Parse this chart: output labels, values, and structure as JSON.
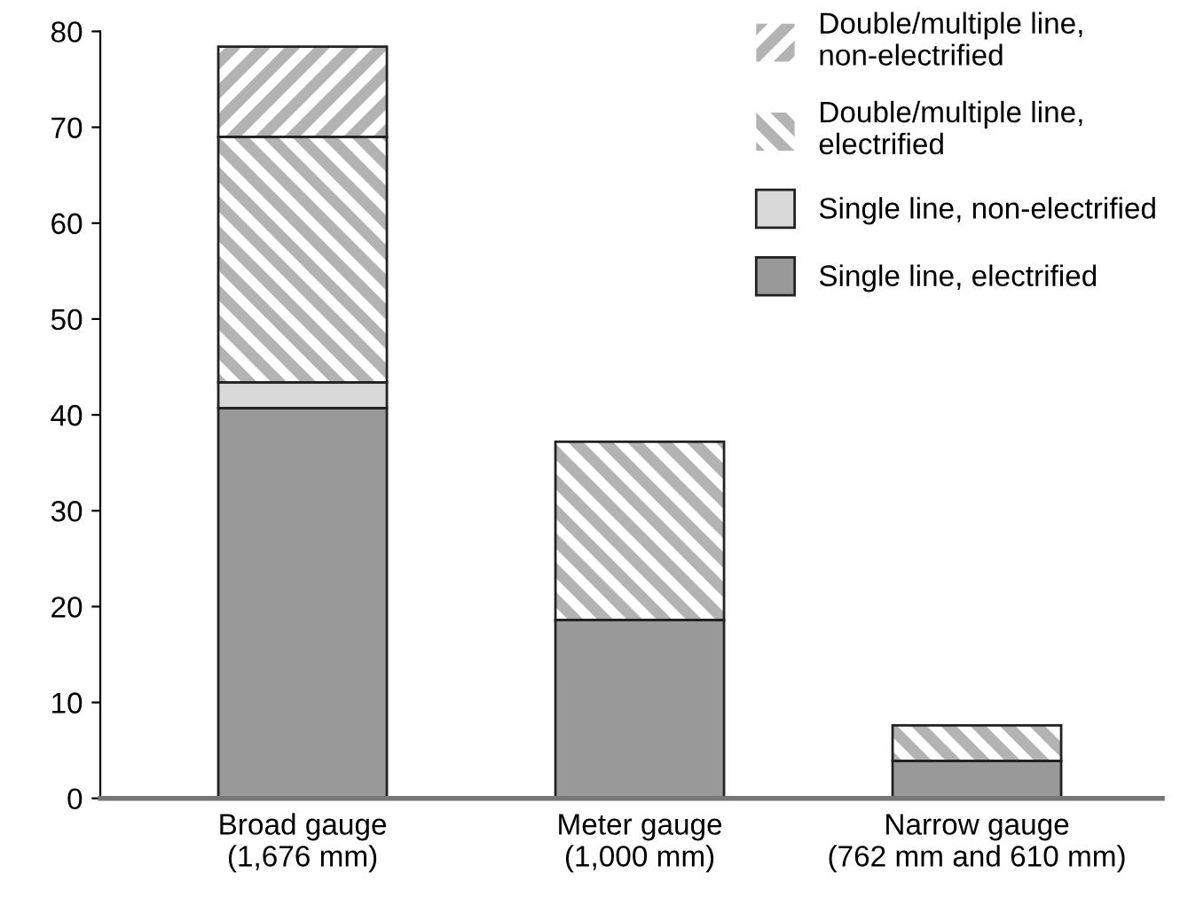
{
  "chart_data": {
    "type": "bar",
    "stacked": true,
    "categories": [
      "Broad gauge\n(1,676 mm)",
      "Meter gauge\n(1,000 mm)",
      "Narrow gauge\n(762 mm and 610 mm)"
    ],
    "series": [
      {
        "name": "Single line, electrified",
        "color": "#999999",
        "values": [
          40.7,
          18.6,
          3.9
        ]
      },
      {
        "name": "Single line, non-electrified",
        "color": "#d9d9d9",
        "values": [
          2.7,
          null,
          null
        ]
      },
      {
        "name": "Double/multiple line,\nelectrified",
        "color": "#b3b3b3",
        "values": [
          25.6,
          18.6,
          3.7
        ]
      },
      {
        "name": "Double/multiple line,\nnon-electrified",
        "color": "#b3b3b3",
        "values": [
          9.4,
          null,
          null
        ]
      }
    ],
    "ylim": [
      0,
      80
    ],
    "yticks": [
      0,
      10,
      20,
      30,
      40,
      50,
      60,
      70,
      80
    ],
    "grid": false,
    "legend": "top right"
  }
}
